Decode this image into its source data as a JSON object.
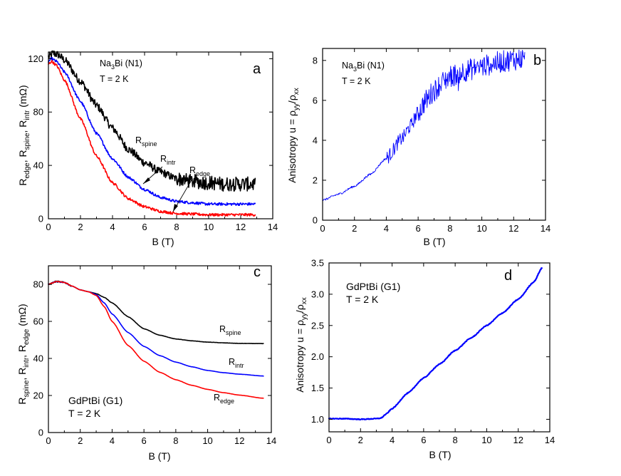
{
  "chart_data": [
    {
      "panel": "a",
      "type": "line",
      "xlabel": "B (T)",
      "ylabel": "R<sub>edge</sub>, R<sub>spine</sub>, R<sub>intr</sub> (mΩ)",
      "xlim": [
        0,
        14
      ],
      "ylim": [
        0,
        125
      ],
      "xticks": [
        0,
        2,
        4,
        6,
        8,
        10,
        12,
        14
      ],
      "yticks": [
        0,
        40,
        80,
        120
      ],
      "annotations": [
        "Na<sub>3</sub>Bi (N1)",
        "T = 2 K"
      ],
      "series": [
        {
          "name": "R<sub>spine</sub>",
          "color": "#000000",
          "noise": 3,
          "x": [
            0,
            0.3,
            0.6,
            1,
            2,
            3,
            4,
            5,
            6,
            7,
            8,
            9,
            10,
            11,
            12,
            12.9
          ],
          "y": [
            121,
            124,
            123,
            119,
            103,
            85,
            68,
            52,
            42,
            35,
            30,
            28,
            27,
            26,
            26,
            26
          ]
        },
        {
          "name": "R<sub>intr</sub>",
          "color": "#0000ff",
          "noise": 1,
          "x": [
            0,
            0.2,
            0.5,
            1,
            2,
            3,
            4,
            5,
            6,
            7,
            8,
            9,
            10,
            11,
            12,
            12.9
          ],
          "y": [
            118,
            120,
            118,
            110,
            88,
            64,
            45,
            31,
            22,
            16,
            13,
            12,
            11,
            11,
            11,
            11
          ]
        },
        {
          "name": "R<sub>edge</sub>",
          "color": "#ff0000",
          "noise": 1,
          "x": [
            0,
            0.2,
            0.5,
            1,
            2,
            3,
            4,
            5,
            6,
            7,
            8,
            9,
            10,
            11,
            12,
            12.9
          ],
          "y": [
            116,
            118,
            115,
            104,
            75,
            47,
            27,
            15,
            9,
            5.5,
            4,
            3.5,
            3,
            3,
            3,
            3
          ]
        }
      ]
    },
    {
      "panel": "b",
      "type": "line",
      "xlabel": "B (T)",
      "ylabel": "Anisotropy  u = ρ<sub>yy</sub>/ρ<sub>xx</sub>",
      "xlim": [
        0,
        14
      ],
      "ylim": [
        0,
        8.6
      ],
      "xticks": [
        0,
        2,
        4,
        6,
        8,
        10,
        12,
        14
      ],
      "yticks": [
        0,
        2,
        4,
        6,
        8
      ],
      "annotations": [
        "Na<sub>3</sub>Bi (N1)",
        "T = 2 K"
      ],
      "series": [
        {
          "name": "",
          "color": "#0000ff",
          "noise": 0.35,
          "x": [
            0,
            1,
            2,
            3,
            4,
            5,
            5.5,
            6,
            6.5,
            7,
            7.5,
            8,
            9,
            10,
            11,
            12,
            12.7
          ],
          "y": [
            1.0,
            1.3,
            1.7,
            2.3,
            3.1,
            4.1,
            4.7,
            5.4,
            6.0,
            6.5,
            6.9,
            7.2,
            7.5,
            7.7,
            7.9,
            8.05,
            8.1
          ]
        }
      ]
    },
    {
      "panel": "c",
      "type": "line",
      "xlabel": "B (T)",
      "ylabel": "R<sub>spine</sub>, R<sub>intr</sub>, R<sub>edge</sub> (mΩ)",
      "xlim": [
        0,
        14
      ],
      "ylim": [
        0,
        90
      ],
      "xticks": [
        0,
        2,
        4,
        6,
        8,
        10,
        12,
        14
      ],
      "yticks": [
        0,
        20,
        40,
        60,
        80
      ],
      "annotations": [
        "GdPtBi (G1)",
        "T = 2 K"
      ],
      "series": [
        {
          "name": "R<sub>spine</sub>",
          "color": "#000000",
          "noise": 0.4,
          "x": [
            0,
            0.5,
            1,
            1.5,
            2,
            2.5,
            3,
            3.5,
            4,
            5,
            6,
            7,
            8,
            9,
            10,
            11,
            12,
            13.5
          ],
          "y": [
            80,
            81.5,
            81,
            79,
            77,
            76,
            75,
            73,
            70,
            62.5,
            56,
            52.5,
            50.5,
            49.5,
            48.8,
            48.4,
            48.1,
            48
          ]
        },
        {
          "name": "R<sub>intr</sub>",
          "color": "#0000ff",
          "noise": 0.2,
          "x": [
            0,
            0.5,
            1,
            1.5,
            2,
            2.5,
            3,
            3.5,
            4,
            5,
            6,
            7,
            8,
            9,
            10,
            11,
            12,
            13.5
          ],
          "y": [
            80,
            81.5,
            81,
            79,
            77,
            76,
            74.5,
            70,
            64,
            54,
            46.5,
            41.5,
            38,
            35.5,
            33.5,
            32.3,
            31.5,
            30.5
          ]
        },
        {
          "name": "R<sub>edge</sub>",
          "color": "#ff0000",
          "noise": 0.2,
          "x": [
            0,
            0.5,
            1,
            1.5,
            2,
            2.5,
            3,
            3.5,
            4,
            5,
            6,
            7,
            8,
            9,
            10,
            11,
            12,
            13.5
          ],
          "y": [
            80,
            81.5,
            81,
            79,
            77,
            76,
            74,
            68,
            60,
            47,
            38.5,
            32.5,
            28.5,
            25.5,
            23.3,
            21.5,
            20.2,
            18.5
          ]
        }
      ]
    },
    {
      "panel": "d",
      "type": "line",
      "xlabel": "B (T)",
      "ylabel": "Anisotropy u = ρ<sub>yy</sub>/ρ<sub>xx</sub>",
      "xlim": [
        0,
        14
      ],
      "ylim": [
        0.8,
        3.5
      ],
      "xticks": [
        0,
        2,
        4,
        6,
        8,
        10,
        12,
        14
      ],
      "yticks": [
        1.0,
        1.5,
        2.0,
        2.5,
        3.0,
        3.5
      ],
      "annotations": [
        "GdPtBi (G1)",
        "T = 2 K"
      ],
      "series": [
        {
          "name": "",
          "color": "#0000ff",
          "noise": 0.006,
          "x": [
            0,
            1,
            2,
            3,
            3.3,
            3.6,
            4,
            5,
            6,
            7,
            8,
            9,
            10,
            11,
            12,
            13,
            13.5
          ],
          "y": [
            1.01,
            1.01,
            1.0,
            1.01,
            1.02,
            1.08,
            1.17,
            1.42,
            1.66,
            1.88,
            2.1,
            2.3,
            2.5,
            2.7,
            2.92,
            3.2,
            3.42
          ]
        }
      ]
    }
  ],
  "labels": {
    "a": {
      "letter": "a",
      "series_spine": {
        "base": "R",
        "sub": "spine"
      },
      "series_intr": {
        "base": "R",
        "sub": "intr"
      },
      "series_edge": {
        "base": "R",
        "sub": "edge"
      },
      "sample": {
        "base": "Na",
        "sub": "3",
        "rest": "Bi (N1)"
      },
      "temp": "T = 2 K",
      "xlabel": "B (T)",
      "ylabel": {
        "p1": "R",
        "s1": "edge",
        "p2": ", R",
        "s2": "spine",
        "p3": ", R",
        "s3": "intr",
        "p4": " (mΩ)"
      }
    },
    "b": {
      "letter": "b",
      "sample": {
        "base": "Na",
        "sub": "3",
        "rest": "Bi (N1)"
      },
      "temp": "T = 2 K",
      "xlabel": "B (T)",
      "ylabel": {
        "p1": "Anisotropy  u = ρ",
        "s1": "yy",
        "p2": "/ρ",
        "s2": "xx"
      }
    },
    "c": {
      "letter": "c",
      "series_spine": {
        "base": "R",
        "sub": "spine"
      },
      "series_intr": {
        "base": "R",
        "sub": "intr"
      },
      "series_edge": {
        "base": "R",
        "sub": "edge"
      },
      "sample": "GdPtBi (G1)",
      "temp": "T = 2 K",
      "xlabel": "B (T)",
      "ylabel": {
        "p1": "R",
        "s1": "spine",
        "p2": ", R",
        "s2": "intr",
        "p3": ", R",
        "s3": "edge",
        "p4": " (mΩ)"
      }
    },
    "d": {
      "letter": "d",
      "sample": "GdPtBi (G1)",
      "temp": "T = 2 K",
      "xlabel": "B (T)",
      "ylabel": {
        "p1": "Anisotropy u = ρ",
        "s1": "yy",
        "p2": "/ρ",
        "s2": "xx"
      }
    }
  }
}
